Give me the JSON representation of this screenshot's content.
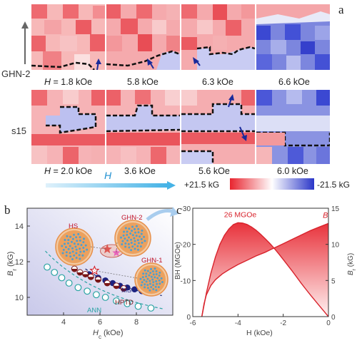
{
  "panel_a": {
    "letter": "a",
    "row1_label": "GHN-2",
    "row2_label": "s15",
    "row1_fields": [
      "1.8 kOe",
      "5.8 kOe",
      "6.3 kOe",
      "6.6 kOe"
    ],
    "row2_fields": [
      "2.0 kOe",
      "3.6 kOe",
      "5.6 kOe",
      "6.0 kOe"
    ],
    "field_prefix": "H",
    "field_eq": " = ",
    "arrow_label": "H",
    "legend_pos": "+21.5 kG",
    "legend_neg": "-21.5 kG",
    "colors": {
      "red": "#e8414a",
      "blue": "#3a47d0"
    }
  },
  "panel_b": {
    "letter": "b",
    "labels": {
      "hs": "HS",
      "ghn2": "GHN-2",
      "ghn1": "GHN-1",
      "ms": "MS",
      "hptd": "HPTD",
      "ann": "ANN"
    },
    "chart_data": {
      "type": "scatter",
      "xlabel_main": "H",
      "xlabel_sub": "c",
      "xlabel_unit": " (kOe)",
      "ylabel_main": "B",
      "ylabel_sub": "r",
      "ylabel_unit": " (kG)",
      "xlim": [
        2.0,
        10.0
      ],
      "ylim": [
        9.0,
        15.0
      ],
      "x_ticks": [
        "4",
        "6",
        "8"
      ],
      "y_ticks": [
        "10",
        "12",
        "14"
      ],
      "series": [
        {
          "name": "ANN",
          "marker": "open-circle-teal",
          "x": [
            3.1,
            3.5,
            3.9,
            4.3,
            4.8,
            5.3,
            5.8,
            6.3,
            6.9,
            7.5,
            8.1,
            8.8
          ],
          "y": [
            11.7,
            11.4,
            11.1,
            10.8,
            10.55,
            10.35,
            10.15,
            10.0,
            9.8,
            9.65,
            9.5,
            9.4
          ]
        },
        {
          "name": "MS",
          "marker": "filled-circle-navy",
          "x": [
            5.4,
            5.9,
            6.3,
            6.7,
            7.1,
            7.5,
            7.9,
            8.3,
            8.7
          ],
          "y": [
            11.3,
            11.1,
            10.95,
            10.8,
            10.65,
            10.55,
            10.45,
            10.35,
            10.3
          ]
        },
        {
          "name": "HPTD",
          "marker": "half-circle-brown",
          "x": [
            4.6,
            4.9,
            5.2,
            5.5,
            5.9,
            6.4,
            6.9,
            7.3
          ],
          "y": [
            11.6,
            11.4,
            11.3,
            11.15,
            11.0,
            10.8,
            10.65,
            10.5
          ]
        },
        {
          "name": "HS",
          "marker": "star-red",
          "x": [
            6.4
          ],
          "y": [
            12.7
          ]
        },
        {
          "name": "GHN-2",
          "marker": "star-magenta",
          "x": [
            6.9
          ],
          "y": [
            12.5
          ]
        },
        {
          "name": "GHN-1",
          "marker": "open-star-red",
          "x": [
            5.7
          ],
          "y": [
            11.5
          ]
        }
      ]
    }
  },
  "panel_c": {
    "letter": "c",
    "peak_label": "26 MGOe",
    "b_label": "B",
    "chart_data": {
      "type": "line",
      "xlabel": "H (kOe)",
      "ylabel_left": "BH (MGOe)",
      "ylabel_right_main": "B",
      "ylabel_right_sub": "r",
      "ylabel_right_unit": " (kG)",
      "xlim": [
        -6.0,
        0.0
      ],
      "ylim_left": [
        0,
        -30
      ],
      "ylim_right": [
        0,
        15
      ],
      "x_ticks": [
        "-6",
        "-4",
        "-2",
        "0"
      ],
      "y_left_ticks": [
        "0",
        "-10",
        "-20",
        "-30"
      ],
      "y_right_ticks": [
        "0",
        "5",
        "10",
        "15"
      ],
      "series": [
        {
          "name": "BH",
          "x": [
            -5.6,
            -5.4,
            -5.2,
            -5.0,
            -4.8,
            -4.6,
            -4.4,
            -4.2,
            -4.0,
            -3.8,
            -3.6,
            -3.4,
            -3.2,
            -3.0,
            -2.8,
            -2.6,
            -2.4,
            -2.2,
            -2.0,
            -1.8,
            -1.6,
            -1.4,
            -1.2,
            -1.0,
            -0.8,
            -0.6,
            -0.4,
            -0.2,
            0.0
          ],
          "y": [
            0,
            -6.5,
            -12,
            -16.5,
            -20,
            -22.5,
            -24.3,
            -25.5,
            -26,
            -25.9,
            -25.5,
            -24.8,
            -23.9,
            -22.8,
            -21.6,
            -20.3,
            -18.9,
            -17.4,
            -15.8,
            -14.2,
            -12.6,
            -10.9,
            -9.2,
            -7.6,
            -6.0,
            -4.5,
            -3.0,
            -1.5,
            0
          ]
        },
        {
          "name": "B",
          "x": [
            -5.6,
            -5.5,
            -5.4,
            -5.2,
            -5.0,
            -4.7,
            -4.4,
            -4.0,
            -3.6,
            -3.2,
            -2.8,
            -2.4,
            -2.0,
            -1.6,
            -1.2,
            -0.8,
            -0.4,
            0.0
          ],
          "y": [
            0,
            1.8,
            3.0,
            4.3,
            5.1,
            5.9,
            6.5,
            7.2,
            7.8,
            8.4,
            8.9,
            9.5,
            10.1,
            10.7,
            11.3,
            11.9,
            12.4,
            12.9
          ]
        }
      ]
    }
  }
}
